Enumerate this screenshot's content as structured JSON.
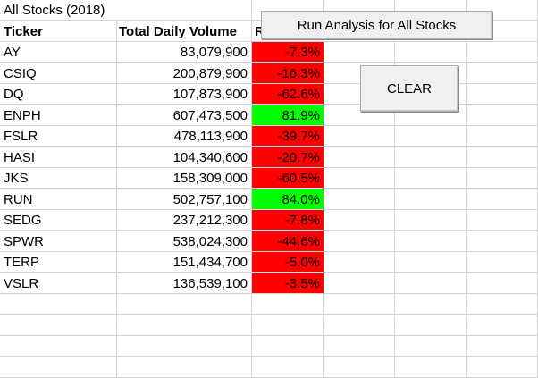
{
  "sheet": {
    "title": "All Stocks (2018)",
    "headers": [
      "Ticker",
      "Total Daily Volume",
      "Return"
    ],
    "rows": [
      {
        "ticker": "AY",
        "volume": "83,079,900",
        "return": "-7.3%",
        "status": "neg"
      },
      {
        "ticker": "CSIQ",
        "volume": "200,879,900",
        "return": "-16.3%",
        "status": "neg"
      },
      {
        "ticker": "DQ",
        "volume": "107,873,900",
        "return": "-62.6%",
        "status": "neg"
      },
      {
        "ticker": "ENPH",
        "volume": "607,473,500",
        "return": "81.9%",
        "status": "pos"
      },
      {
        "ticker": "FSLR",
        "volume": "478,113,900",
        "return": "-39.7%",
        "status": "neg"
      },
      {
        "ticker": "HASI",
        "volume": "104,340,600",
        "return": "-20.7%",
        "status": "neg"
      },
      {
        "ticker": "JKS",
        "volume": "158,309,000",
        "return": "-60.5%",
        "status": "neg"
      },
      {
        "ticker": "RUN",
        "volume": "502,757,100",
        "return": "84.0%",
        "status": "pos"
      },
      {
        "ticker": "SEDG",
        "volume": "237,212,300",
        "return": "-7.8%",
        "status": "neg"
      },
      {
        "ticker": "SPWR",
        "volume": "538,024,300",
        "return": "-44.6%",
        "status": "neg"
      },
      {
        "ticker": "TERP",
        "volume": "151,434,700",
        "return": "-5.0%",
        "status": "neg"
      },
      {
        "ticker": "VSLR",
        "volume": "136,539,100",
        "return": "-3.5%",
        "status": "neg"
      }
    ]
  },
  "buttons": {
    "run_label": "Run Analysis  for All Stocks",
    "clear_label": "CLEAR"
  },
  "colors": {
    "negative": "#ff0000",
    "positive": "#00ff00",
    "gridline": "#d4d4d4"
  }
}
